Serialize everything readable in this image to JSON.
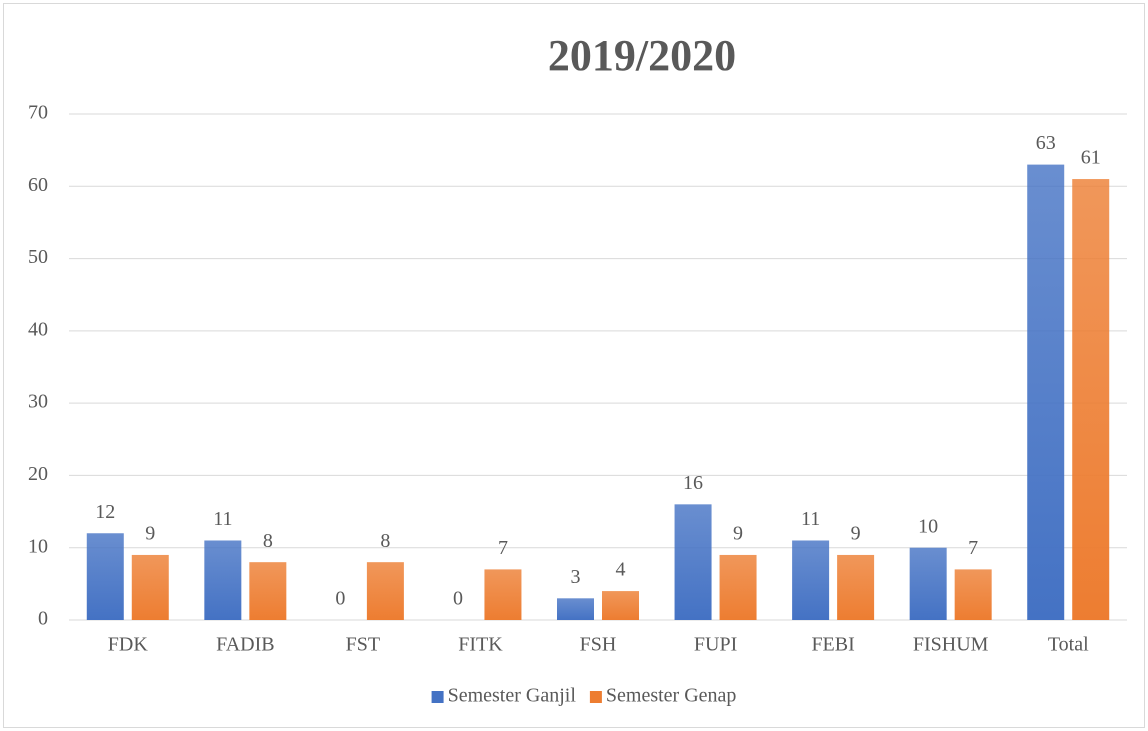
{
  "chart_data": {
    "type": "bar",
    "title": "2019/2020",
    "categories": [
      "FDK",
      "FADIB",
      "FST",
      "FITK",
      "FSH",
      "FUPI",
      "FEBI",
      "FISHUM",
      "Total"
    ],
    "series": [
      {
        "name": "Semester Ganjil",
        "color": "#4472c4",
        "values": [
          12,
          11,
          0,
          0,
          3,
          16,
          11,
          10,
          63
        ]
      },
      {
        "name": "Semester Genap",
        "color": "#ed7d31",
        "values": [
          9,
          8,
          8,
          7,
          4,
          9,
          9,
          7,
          61
        ]
      }
    ],
    "ylim": [
      0,
      70
    ],
    "yticks": [
      0,
      10,
      20,
      30,
      40,
      50,
      60,
      70
    ],
    "grid": true,
    "legend": "bottom"
  }
}
